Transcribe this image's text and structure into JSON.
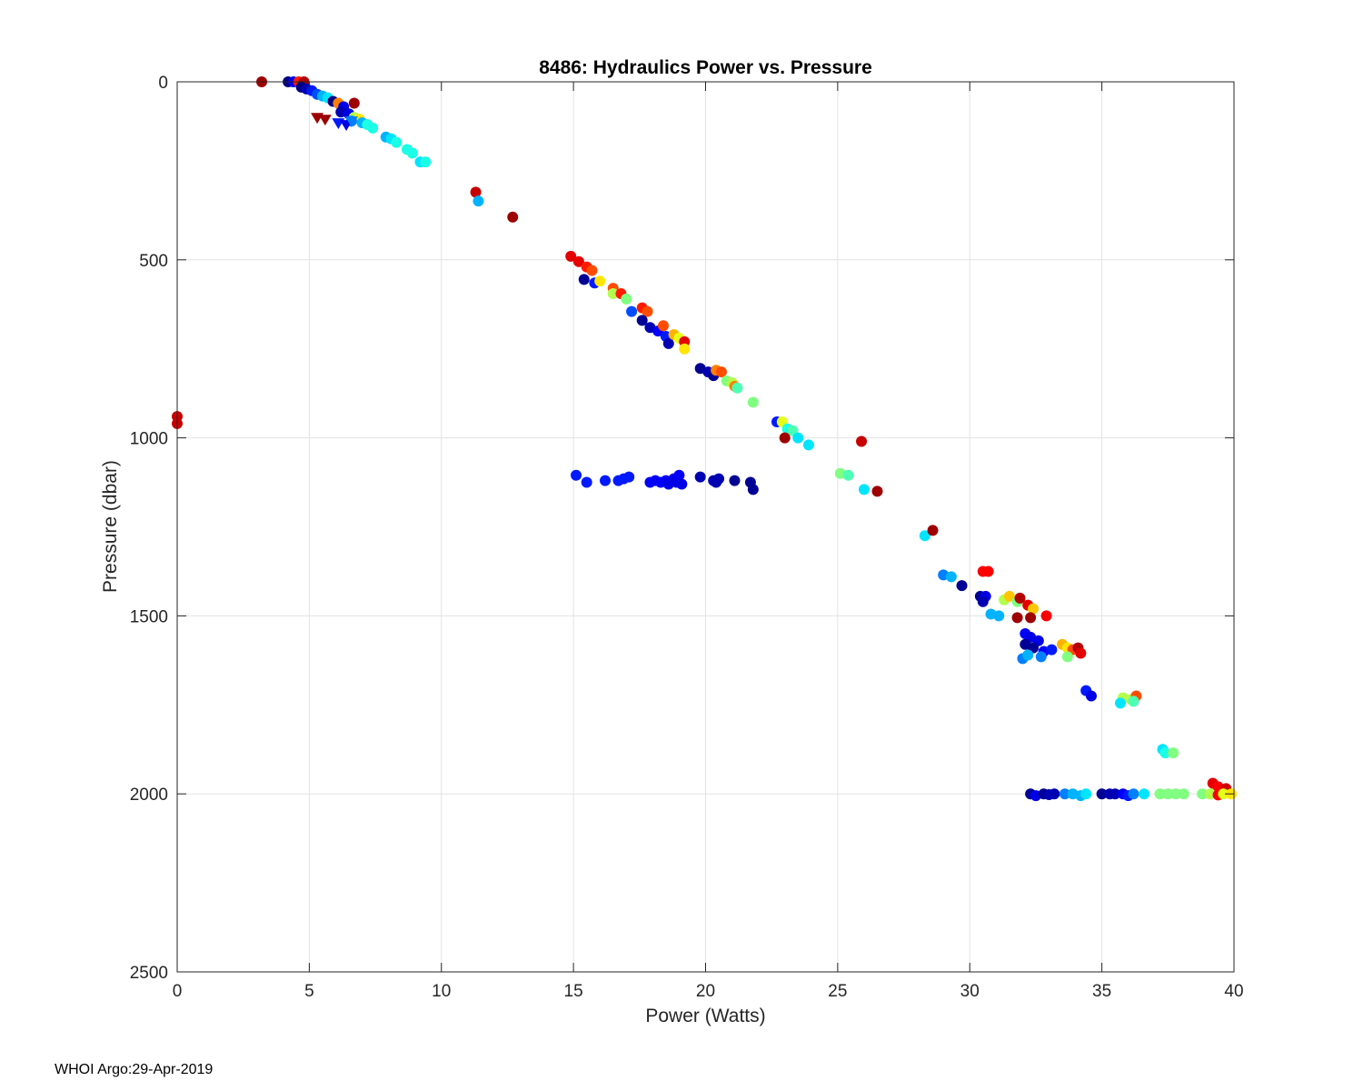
{
  "chart_data": {
    "type": "scatter",
    "title": "8486: Hydraulics Power vs. Pressure",
    "xlabel": "Power (Watts)",
    "ylabel": "Pressure (dbar)",
    "xlim": [
      0,
      40
    ],
    "ylim": [
      0,
      2500
    ],
    "y_reversed": true,
    "grid": true,
    "x_ticks": [
      0,
      5,
      10,
      15,
      20,
      25,
      30,
      35,
      40
    ],
    "y_ticks": [
      0,
      500,
      1000,
      1500,
      2000,
      2500
    ],
    "x_tick_labels": [
      "0",
      "5",
      "10",
      "15",
      "20",
      "25",
      "30",
      "35",
      "40"
    ],
    "y_tick_labels": [
      "0",
      "500",
      "1000",
      "1500",
      "2000",
      "2500"
    ],
    "colormap": "jet (dark blue = early profiles, dark red = late profiles)",
    "points": [
      {
        "x": 3.2,
        "y": 0,
        "c": 0.97
      },
      {
        "x": 4.2,
        "y": 0,
        "c": 0.0
      },
      {
        "x": 4.4,
        "y": 0,
        "c": 0.1
      },
      {
        "x": 4.6,
        "y": 0,
        "c": 0.85
      },
      {
        "x": 4.8,
        "y": 0,
        "c": 0.95
      },
      {
        "x": 4.7,
        "y": 15,
        "c": 0.0
      },
      {
        "x": 4.9,
        "y": 20,
        "c": 0.05
      },
      {
        "x": 5.1,
        "y": 25,
        "c": 0.15
      },
      {
        "x": 5.3,
        "y": 35,
        "c": 0.2
      },
      {
        "x": 5.5,
        "y": 40,
        "c": 0.3
      },
      {
        "x": 5.7,
        "y": 45,
        "c": 0.35
      },
      {
        "x": 5.9,
        "y": 55,
        "c": 0.0
      },
      {
        "x": 6.1,
        "y": 60,
        "c": 0.75
      },
      {
        "x": 6.3,
        "y": 70,
        "c": 0.1
      },
      {
        "x": 6.7,
        "y": 60,
        "c": 0.97
      },
      {
        "x": 6.2,
        "y": 85,
        "c": 0.05
      },
      {
        "x": 6.5,
        "y": 90,
        "c": 0.1
      },
      {
        "x": 6.7,
        "y": 100,
        "c": 0.55
      },
      {
        "x": 6.9,
        "y": 105,
        "c": 0.65
      },
      {
        "x": 6.6,
        "y": 110,
        "c": 0.25
      },
      {
        "x": 7.0,
        "y": 115,
        "c": 0.3
      },
      {
        "x": 7.2,
        "y": 120,
        "c": 0.4
      },
      {
        "x": 7.4,
        "y": 130,
        "c": 0.4
      },
      {
        "x": 7.9,
        "y": 155,
        "c": 0.3
      },
      {
        "x": 8.1,
        "y": 160,
        "c": 0.35
      },
      {
        "x": 8.3,
        "y": 170,
        "c": 0.4
      },
      {
        "x": 8.7,
        "y": 190,
        "c": 0.4
      },
      {
        "x": 8.9,
        "y": 200,
        "c": 0.4
      },
      {
        "x": 9.2,
        "y": 225,
        "c": 0.35
      },
      {
        "x": 9.4,
        "y": 225,
        "c": 0.4
      },
      {
        "x": 11.3,
        "y": 310,
        "c": 0.93
      },
      {
        "x": 11.4,
        "y": 335,
        "c": 0.3
      },
      {
        "x": 12.7,
        "y": 380,
        "c": 0.97
      },
      {
        "x": 14.9,
        "y": 490,
        "c": 0.9
      },
      {
        "x": 15.2,
        "y": 505,
        "c": 0.9
      },
      {
        "x": 15.5,
        "y": 520,
        "c": 0.85
      },
      {
        "x": 15.7,
        "y": 530,
        "c": 0.8
      },
      {
        "x": 15.4,
        "y": 555,
        "c": 0.02
      },
      {
        "x": 15.8,
        "y": 565,
        "c": 0.15
      },
      {
        "x": 16.0,
        "y": 560,
        "c": 0.65
      },
      {
        "x": 16.5,
        "y": 580,
        "c": 0.8
      },
      {
        "x": 16.5,
        "y": 595,
        "c": 0.55
      },
      {
        "x": 16.8,
        "y": 595,
        "c": 0.85
      },
      {
        "x": 17.0,
        "y": 610,
        "c": 0.5
      },
      {
        "x": 17.2,
        "y": 645,
        "c": 0.2
      },
      {
        "x": 17.6,
        "y": 635,
        "c": 0.85
      },
      {
        "x": 17.8,
        "y": 645,
        "c": 0.8
      },
      {
        "x": 17.6,
        "y": 670,
        "c": 0.02
      },
      {
        "x": 17.9,
        "y": 690,
        "c": 0.05
      },
      {
        "x": 18.2,
        "y": 700,
        "c": 0.12
      },
      {
        "x": 18.4,
        "y": 685,
        "c": 0.8
      },
      {
        "x": 18.5,
        "y": 715,
        "c": 0.15
      },
      {
        "x": 18.6,
        "y": 735,
        "c": 0.05
      },
      {
        "x": 18.8,
        "y": 710,
        "c": 0.7
      },
      {
        "x": 19.0,
        "y": 720,
        "c": 0.6
      },
      {
        "x": 19.2,
        "y": 730,
        "c": 0.9
      },
      {
        "x": 19.2,
        "y": 750,
        "c": 0.65
      },
      {
        "x": 19.8,
        "y": 805,
        "c": 0.02
      },
      {
        "x": 20.1,
        "y": 815,
        "c": 0.05
      },
      {
        "x": 20.3,
        "y": 825,
        "c": 0.02
      },
      {
        "x": 20.4,
        "y": 810,
        "c": 0.75
      },
      {
        "x": 20.6,
        "y": 815,
        "c": 0.8
      },
      {
        "x": 20.8,
        "y": 840,
        "c": 0.5
      },
      {
        "x": 21.0,
        "y": 845,
        "c": 0.55
      },
      {
        "x": 21.1,
        "y": 855,
        "c": 0.75
      },
      {
        "x": 21.2,
        "y": 860,
        "c": 0.45
      },
      {
        "x": 21.8,
        "y": 900,
        "c": 0.5
      },
      {
        "x": 22.7,
        "y": 955,
        "c": 0.15
      },
      {
        "x": 22.9,
        "y": 955,
        "c": 0.6
      },
      {
        "x": 23.1,
        "y": 975,
        "c": 0.4
      },
      {
        "x": 23.3,
        "y": 980,
        "c": 0.45
      },
      {
        "x": 23.0,
        "y": 1000,
        "c": 0.97
      },
      {
        "x": 23.5,
        "y": 1000,
        "c": 0.35
      },
      {
        "x": 23.9,
        "y": 1020,
        "c": 0.35
      },
      {
        "x": 25.9,
        "y": 1010,
        "c": 0.93
      },
      {
        "x": 25.1,
        "y": 1100,
        "c": 0.5
      },
      {
        "x": 25.4,
        "y": 1105,
        "c": 0.45
      },
      {
        "x": 26.0,
        "y": 1145,
        "c": 0.35
      },
      {
        "x": 26.5,
        "y": 1150,
        "c": 0.97
      },
      {
        "x": 15.1,
        "y": 1105,
        "c": 0.15
      },
      {
        "x": 15.5,
        "y": 1125,
        "c": 0.15
      },
      {
        "x": 16.2,
        "y": 1120,
        "c": 0.15
      },
      {
        "x": 16.7,
        "y": 1120,
        "c": 0.15
      },
      {
        "x": 16.9,
        "y": 1115,
        "c": 0.15
      },
      {
        "x": 17.1,
        "y": 1110,
        "c": 0.15
      },
      {
        "x": 17.9,
        "y": 1125,
        "c": 0.12
      },
      {
        "x": 18.1,
        "y": 1120,
        "c": 0.12
      },
      {
        "x": 18.3,
        "y": 1125,
        "c": 0.12
      },
      {
        "x": 18.5,
        "y": 1120,
        "c": 0.12
      },
      {
        "x": 18.6,
        "y": 1130,
        "c": 0.1
      },
      {
        "x": 18.8,
        "y": 1115,
        "c": 0.1
      },
      {
        "x": 18.9,
        "y": 1125,
        "c": 0.1
      },
      {
        "x": 19.0,
        "y": 1105,
        "c": 0.12
      },
      {
        "x": 19.1,
        "y": 1130,
        "c": 0.1
      },
      {
        "x": 19.8,
        "y": 1110,
        "c": 0.05
      },
      {
        "x": 20.3,
        "y": 1120,
        "c": 0.05
      },
      {
        "x": 20.5,
        "y": 1115,
        "c": 0.05
      },
      {
        "x": 20.4,
        "y": 1125,
        "c": 0.05
      },
      {
        "x": 21.1,
        "y": 1120,
        "c": 0.02
      },
      {
        "x": 21.7,
        "y": 1125,
        "c": 0.02
      },
      {
        "x": 21.8,
        "y": 1145,
        "c": 0.02
      },
      {
        "x": 28.3,
        "y": 1275,
        "c": 0.35
      },
      {
        "x": 28.6,
        "y": 1260,
        "c": 0.97
      },
      {
        "x": 29.0,
        "y": 1385,
        "c": 0.25
      },
      {
        "x": 29.3,
        "y": 1390,
        "c": 0.3
      },
      {
        "x": 29.7,
        "y": 1415,
        "c": 0.02
      },
      {
        "x": 30.4,
        "y": 1445,
        "c": 0.02
      },
      {
        "x": 30.6,
        "y": 1445,
        "c": 0.1
      },
      {
        "x": 30.5,
        "y": 1460,
        "c": 0.05
      },
      {
        "x": 30.5,
        "y": 1375,
        "c": 0.88
      },
      {
        "x": 30.7,
        "y": 1375,
        "c": 0.88
      },
      {
        "x": 30.8,
        "y": 1495,
        "c": 0.3
      },
      {
        "x": 31.1,
        "y": 1500,
        "c": 0.3
      },
      {
        "x": 31.3,
        "y": 1455,
        "c": 0.55
      },
      {
        "x": 31.5,
        "y": 1445,
        "c": 0.68
      },
      {
        "x": 31.8,
        "y": 1460,
        "c": 0.5
      },
      {
        "x": 31.9,
        "y": 1450,
        "c": 0.95
      },
      {
        "x": 31.8,
        "y": 1505,
        "c": 0.97
      },
      {
        "x": 32.2,
        "y": 1470,
        "c": 0.9
      },
      {
        "x": 32.4,
        "y": 1480,
        "c": 0.68
      },
      {
        "x": 32.3,
        "y": 1505,
        "c": 0.97
      },
      {
        "x": 32.9,
        "y": 1500,
        "c": 0.88
      },
      {
        "x": 32.1,
        "y": 1550,
        "c": 0.12
      },
      {
        "x": 32.3,
        "y": 1560,
        "c": 0.1
      },
      {
        "x": 32.6,
        "y": 1570,
        "c": 0.1
      },
      {
        "x": 32.1,
        "y": 1580,
        "c": 0.02
      },
      {
        "x": 32.4,
        "y": 1590,
        "c": 0.02
      },
      {
        "x": 32.8,
        "y": 1600,
        "c": 0.12
      },
      {
        "x": 33.1,
        "y": 1595,
        "c": 0.15
      },
      {
        "x": 32.0,
        "y": 1620,
        "c": 0.25
      },
      {
        "x": 32.2,
        "y": 1610,
        "c": 0.3
      },
      {
        "x": 32.7,
        "y": 1615,
        "c": 0.25
      },
      {
        "x": 33.5,
        "y": 1580,
        "c": 0.7
      },
      {
        "x": 33.7,
        "y": 1590,
        "c": 0.65
      },
      {
        "x": 33.9,
        "y": 1595,
        "c": 0.8
      },
      {
        "x": 34.1,
        "y": 1590,
        "c": 0.95
      },
      {
        "x": 34.2,
        "y": 1605,
        "c": 0.9
      },
      {
        "x": 33.7,
        "y": 1615,
        "c": 0.5
      },
      {
        "x": 34.4,
        "y": 1710,
        "c": 0.15
      },
      {
        "x": 34.6,
        "y": 1725,
        "c": 0.1
      },
      {
        "x": 35.8,
        "y": 1730,
        "c": 0.55
      },
      {
        "x": 35.7,
        "y": 1745,
        "c": 0.35
      },
      {
        "x": 36.1,
        "y": 1735,
        "c": 0.55
      },
      {
        "x": 36.3,
        "y": 1725,
        "c": 0.8
      },
      {
        "x": 36.2,
        "y": 1740,
        "c": 0.45
      },
      {
        "x": 37.3,
        "y": 1875,
        "c": 0.35
      },
      {
        "x": 37.4,
        "y": 1885,
        "c": 0.4
      },
      {
        "x": 37.7,
        "y": 1885,
        "c": 0.5
      },
      {
        "x": 32.3,
        "y": 2000,
        "c": 0.02
      },
      {
        "x": 32.5,
        "y": 2005,
        "c": 0.1
      },
      {
        "x": 32.8,
        "y": 2000,
        "c": 0.02
      },
      {
        "x": 33.0,
        "y": 2002,
        "c": 0.05
      },
      {
        "x": 33.2,
        "y": 2000,
        "c": 0.05
      },
      {
        "x": 33.6,
        "y": 2000,
        "c": 0.25
      },
      {
        "x": 33.9,
        "y": 2000,
        "c": 0.3
      },
      {
        "x": 34.2,
        "y": 2005,
        "c": 0.3
      },
      {
        "x": 34.4,
        "y": 2000,
        "c": 0.35
      },
      {
        "x": 35.0,
        "y": 2000,
        "c": 0.02
      },
      {
        "x": 35.3,
        "y": 2000,
        "c": 0.05
      },
      {
        "x": 35.5,
        "y": 2000,
        "c": 0.05
      },
      {
        "x": 35.8,
        "y": 2000,
        "c": 0.12
      },
      {
        "x": 36.0,
        "y": 2005,
        "c": 0.15
      },
      {
        "x": 36.2,
        "y": 2000,
        "c": 0.25
      },
      {
        "x": 36.6,
        "y": 2000,
        "c": 0.35
      },
      {
        "x": 37.2,
        "y": 2000,
        "c": 0.5
      },
      {
        "x": 37.5,
        "y": 2000,
        "c": 0.5
      },
      {
        "x": 37.8,
        "y": 2000,
        "c": 0.5
      },
      {
        "x": 38.1,
        "y": 2000,
        "c": 0.5
      },
      {
        "x": 38.8,
        "y": 2000,
        "c": 0.5
      },
      {
        "x": 39.2,
        "y": 1970,
        "c": 0.9
      },
      {
        "x": 39.4,
        "y": 1980,
        "c": 0.88
      },
      {
        "x": 39.7,
        "y": 1985,
        "c": 0.92
      },
      {
        "x": 39.1,
        "y": 2000,
        "c": 0.55
      },
      {
        "x": 39.4,
        "y": 2003,
        "c": 0.88
      },
      {
        "x": 39.6,
        "y": 2000,
        "c": 0.6
      },
      {
        "x": 39.9,
        "y": 2000,
        "c": 0.65
      }
    ],
    "triangle_points": [
      {
        "x": 5.3,
        "y": 100,
        "c": 0.97
      },
      {
        "x": 5.6,
        "y": 105,
        "c": 0.97
      },
      {
        "x": 6.1,
        "y": 115,
        "c": 0.15
      },
      {
        "x": 6.4,
        "y": 120,
        "c": 0.1
      },
      {
        "x": 6.6,
        "y": 110,
        "c": 0.25
      }
    ],
    "left_edge_points": [
      {
        "x": 0.0,
        "y": 940,
        "c": 0.93
      },
      {
        "x": 0.0,
        "y": 960,
        "c": 0.93
      }
    ]
  },
  "footer": {
    "text": "WHOI Argo:29-Apr-2019"
  }
}
